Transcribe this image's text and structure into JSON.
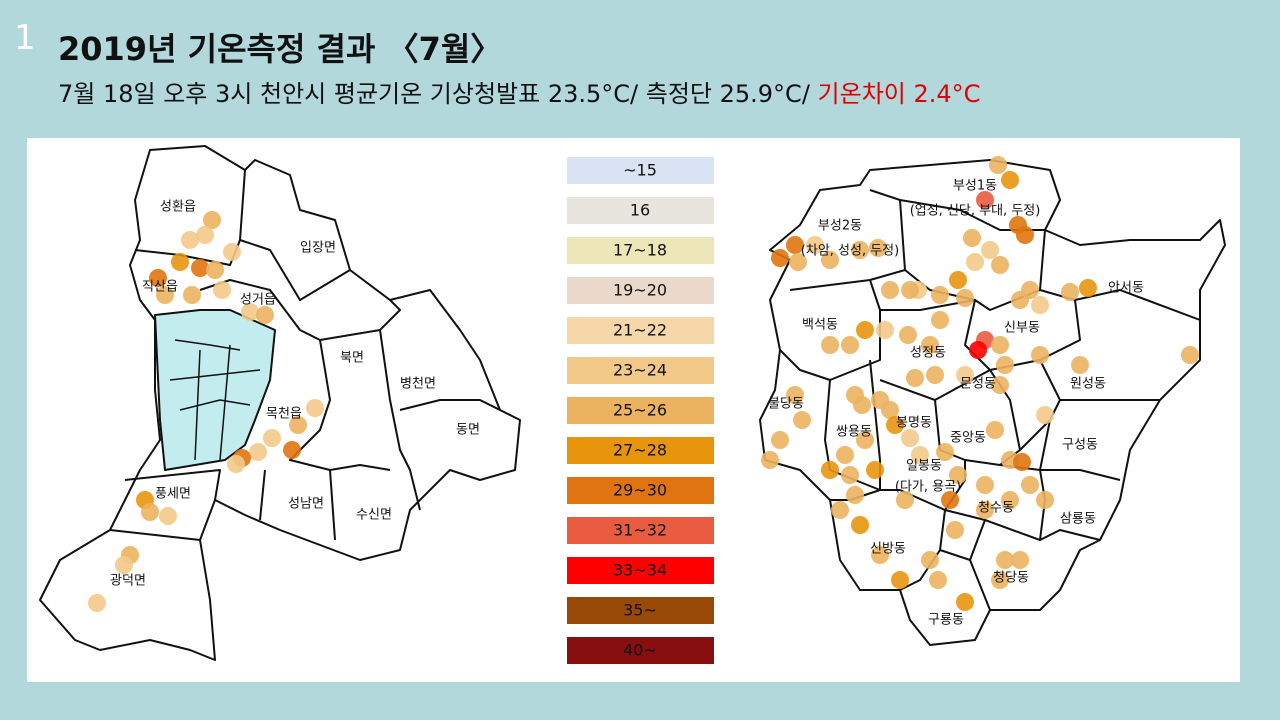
{
  "slide_number": "1",
  "title": "2019년 기온측정 결과 〈7월〉",
  "subtitle": {
    "text": "7월 18일 오후 3시 천안시 평균기온 기상청발표 23.5°C/ 측정단 25.9°C/ ",
    "highlight": "기온차이 2.4°C"
  },
  "legend": [
    {
      "label": "~15",
      "color": "#dae3f3"
    },
    {
      "label": "16",
      "color": "#e8e5df"
    },
    {
      "label": "17~18",
      "color": "#ede6b8"
    },
    {
      "label": "19~20",
      "color": "#ead9cb"
    },
    {
      "label": "21~22",
      "color": "#f6d7a9"
    },
    {
      "label": "23~24",
      "color": "#f3c98a"
    },
    {
      "label": "25~26",
      "color": "#ebb35f"
    },
    {
      "label": "27~28",
      "color": "#e8950e"
    },
    {
      "label": "29~30",
      "color": "#e07410"
    },
    {
      "label": "31~32",
      "color": "#e95c3f"
    },
    {
      "label": "33~34",
      "color": "#fe0000"
    },
    {
      "label": "35~",
      "color": "#984807"
    },
    {
      "label": "40~",
      "color": "#880f0f"
    }
  ],
  "left_map": {
    "regions": [
      "성환읍",
      "입장면",
      "직산읍",
      "성거읍",
      "북면",
      "병천면",
      "목천읍",
      "동면",
      "풍세면",
      "성남면",
      "수신면",
      "광덕면"
    ]
  },
  "right_map": {
    "regions": [
      "부성1동",
      "(업성, 신당, 부대, 두정)",
      "부성2동",
      "(차암, 성성, 두정)",
      "안서동",
      "백석동",
      "신부동",
      "성정동",
      "문성동",
      "원성동",
      "불당동",
      "봉명동",
      "쌍용동",
      "중앙동",
      "구성동",
      "일봉동",
      "(다가, 용곡)",
      "청수동",
      "삼룡동",
      "신방동",
      "청당동",
      "구룡동"
    ]
  }
}
